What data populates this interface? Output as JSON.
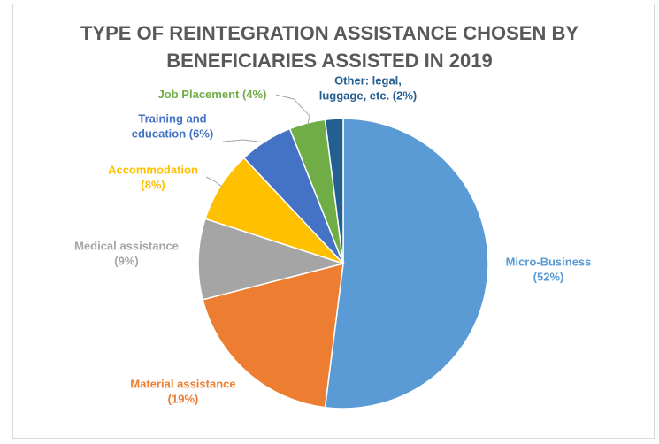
{
  "chart_data": {
    "type": "pie",
    "title": [
      "TYPE OF REINTEGRATION ASSISTANCE CHOSEN BY",
      "BENEFICIARIES ASSISTED IN 2019"
    ],
    "slices": [
      {
        "name": "Micro-Business",
        "value": 52,
        "label": [
          "Micro-Business",
          "(52%)"
        ],
        "color": "#5b9bd5"
      },
      {
        "name": "Material assistance",
        "value": 19,
        "label": [
          "Material assistance",
          "(19%)"
        ],
        "color": "#ed7d31"
      },
      {
        "name": "Medical assistance",
        "value": 9,
        "label": [
          "Medical assistance",
          "(9%)"
        ],
        "color": "#a5a5a5"
      },
      {
        "name": "Accommodation",
        "value": 8,
        "label": [
          "Accommodation",
          "(8%)"
        ],
        "color": "#ffc000"
      },
      {
        "name": "Training and education",
        "value": 6,
        "label": [
          "Training and",
          "education (6%)"
        ],
        "color": "#4472c4"
      },
      {
        "name": "Job Placement",
        "value": 4,
        "label": [
          "Job Placement (4%)"
        ],
        "color": "#70ad47"
      },
      {
        "name": "Other: legal, luggage, etc.",
        "value": 2,
        "label": [
          "Other: legal,",
          "luggage, etc. (2%)"
        ],
        "color": "#255e91"
      }
    ],
    "legend": "none",
    "data_labels": "outside"
  }
}
